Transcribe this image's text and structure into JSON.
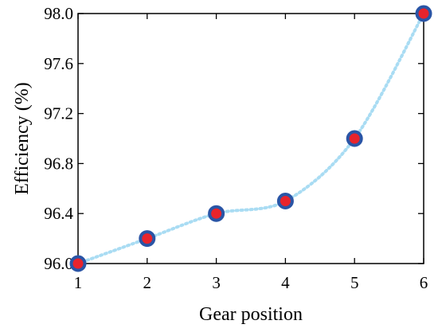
{
  "chart_data": {
    "type": "line",
    "title": "",
    "xlabel": "Gear position",
    "ylabel": "Efficiency (%)",
    "x": [
      1,
      2,
      3,
      4,
      5,
      6
    ],
    "series": [
      {
        "values": [
          96.0,
          96.2,
          96.4,
          96.5,
          97.0,
          98.0
        ],
        "line_style": "dotted",
        "smooth": true,
        "line_color": "#a9dcf3",
        "marker": "circle",
        "marker_fill": "#e8242c",
        "marker_edge": "#2a55a6"
      }
    ],
    "xlim": [
      1,
      6
    ],
    "ylim": [
      96.0,
      98.0
    ],
    "xticks": [
      1,
      2,
      3,
      4,
      5,
      6
    ],
    "xtick_labels": [
      "1",
      "2",
      "3",
      "4",
      "5",
      "6"
    ],
    "yticks": [
      96.0,
      96.4,
      96.8,
      97.2,
      97.6,
      98.0
    ],
    "ytick_labels": [
      "96.0",
      "96.4",
      "96.8",
      "97.2",
      "97.6",
      "98.0"
    ],
    "grid": false,
    "box": true
  }
}
